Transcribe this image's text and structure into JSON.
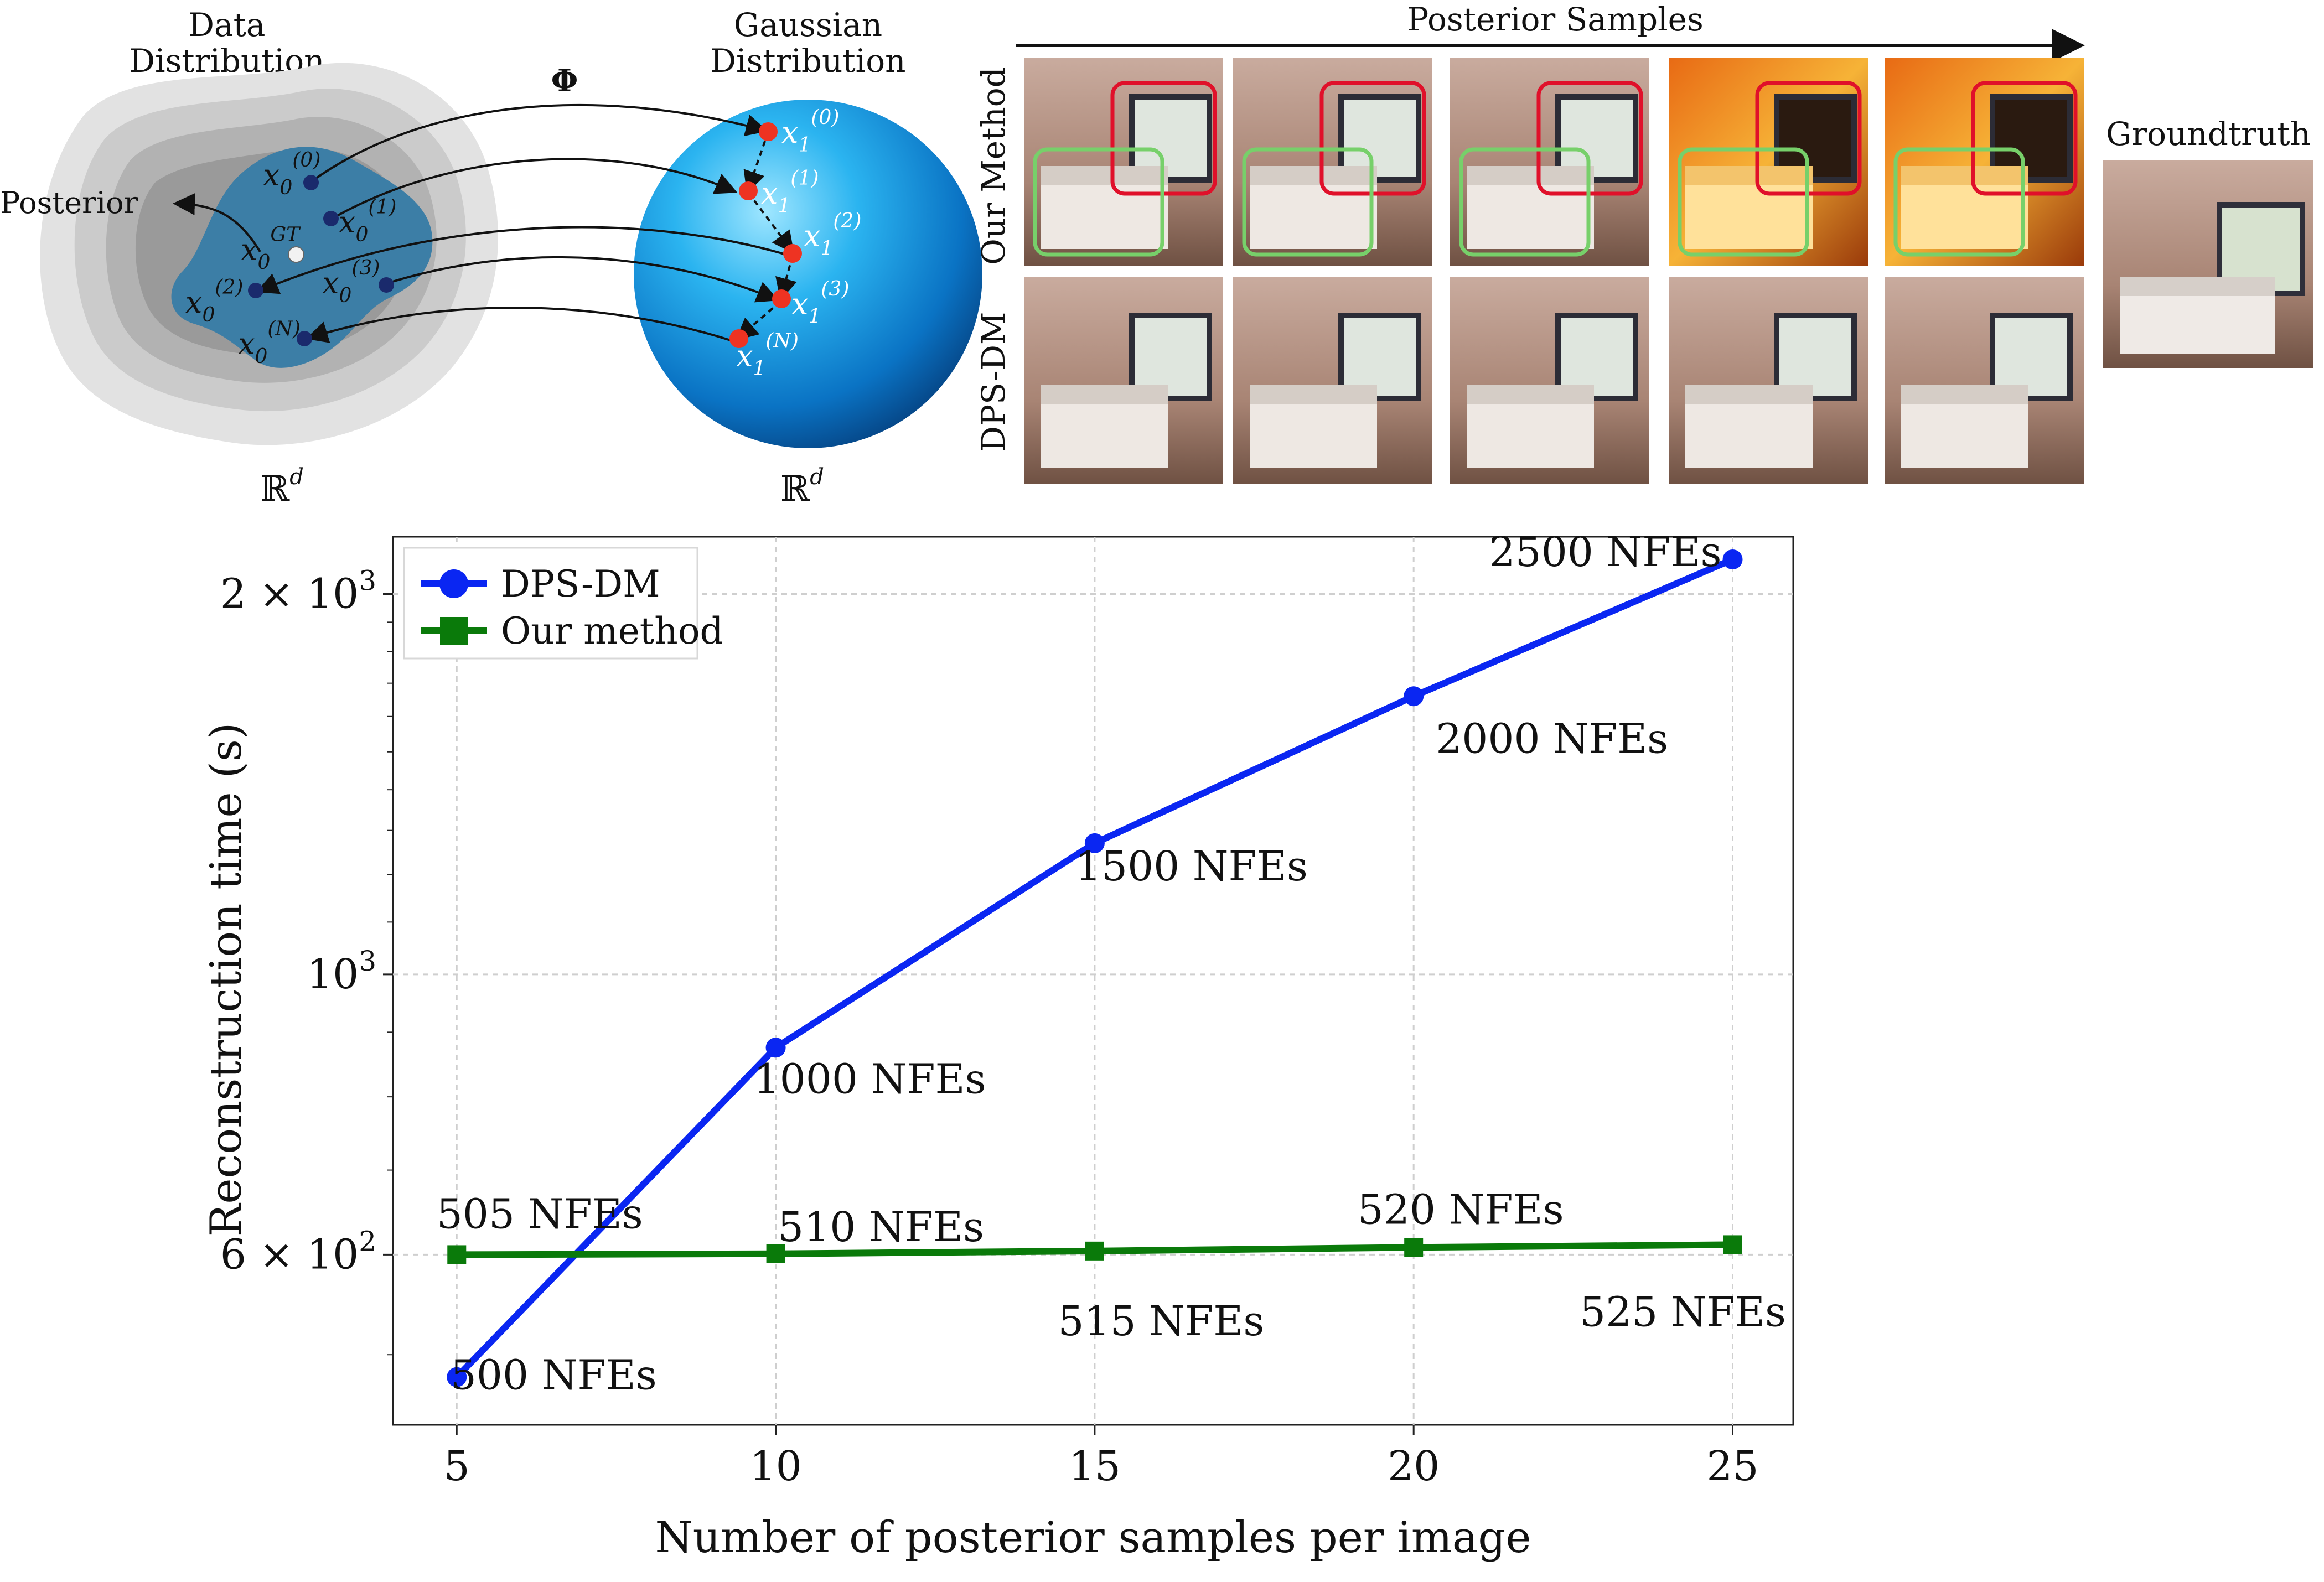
{
  "diagram": {
    "left_title_line1": "Data",
    "left_title_line2": "Distribution",
    "right_title_line1": "Gaussian",
    "right_title_line2": "Distribution",
    "phi_label": "Φ",
    "posterior_label": "Posterior",
    "left_space": "ℝ",
    "right_space": "ℝ",
    "space_exp": "d",
    "data_points": [
      {
        "sym": "x",
        "sub": "0",
        "sup": "(0)"
      },
      {
        "sym": "x",
        "sub": "0",
        "sup": "(1)"
      },
      {
        "sym": "x",
        "sub": "0",
        "sup": "GT"
      },
      {
        "sym": "x",
        "sub": "0",
        "sup": "(2)"
      },
      {
        "sym": "x",
        "sub": "0",
        "sup": "(3)"
      },
      {
        "sym": "x",
        "sub": "0",
        "sup": "(N)"
      }
    ],
    "latent_points": [
      {
        "sym": "x",
        "sub": "1",
        "sup": "(0)"
      },
      {
        "sym": "x",
        "sub": "1",
        "sup": "(1)"
      },
      {
        "sym": "x",
        "sub": "1",
        "sup": "(2)"
      },
      {
        "sym": "x",
        "sub": "1",
        "sup": "(3)"
      },
      {
        "sym": "x",
        "sub": "1",
        "sup": "(N)"
      }
    ]
  },
  "samples": {
    "header": "Posterior Samples",
    "row1_label": "Our Method",
    "row2_label": "DPS-DM",
    "groundtruth_label": "Groundtruth",
    "columns": 5
  },
  "chart_data": {
    "type": "line",
    "xlabel": "Number of posterior samples per image",
    "ylabel": "Reconstruction time (s)",
    "x": [
      5,
      10,
      15,
      20,
      25
    ],
    "xticks": [
      "5",
      "10",
      "15",
      "20",
      "25"
    ],
    "xlim": [
      4,
      25.95
    ],
    "ylim": [
      440,
      2220
    ],
    "yscale": "log",
    "ytick_labels": [
      {
        "value": 2000,
        "base": "2 × 10",
        "exp": "3"
      },
      {
        "value": 1000,
        "base": "10",
        "exp": "3"
      },
      {
        "value": 600,
        "base": "6 × 10",
        "exp": "2"
      }
    ],
    "grid": true,
    "legend_position": "upper-left",
    "series": [
      {
        "name": "DPS-DM",
        "color": "#0a26f2",
        "marker": "circle",
        "values": [
          480,
          875,
          1270,
          1660,
          2130
        ],
        "annotations": [
          "500 NFEs",
          "1000 NFEs",
          "1500 NFEs",
          "2000 NFEs",
          "2500 NFEs"
        ]
      },
      {
        "name": "Our method",
        "color": "#0a7a0a",
        "marker": "square",
        "values": [
          600,
          601,
          604,
          608,
          611
        ],
        "annotations": [
          "505 NFEs",
          "510 NFEs",
          "515 NFEs",
          "520 NFEs",
          "525 NFEs"
        ]
      }
    ]
  }
}
